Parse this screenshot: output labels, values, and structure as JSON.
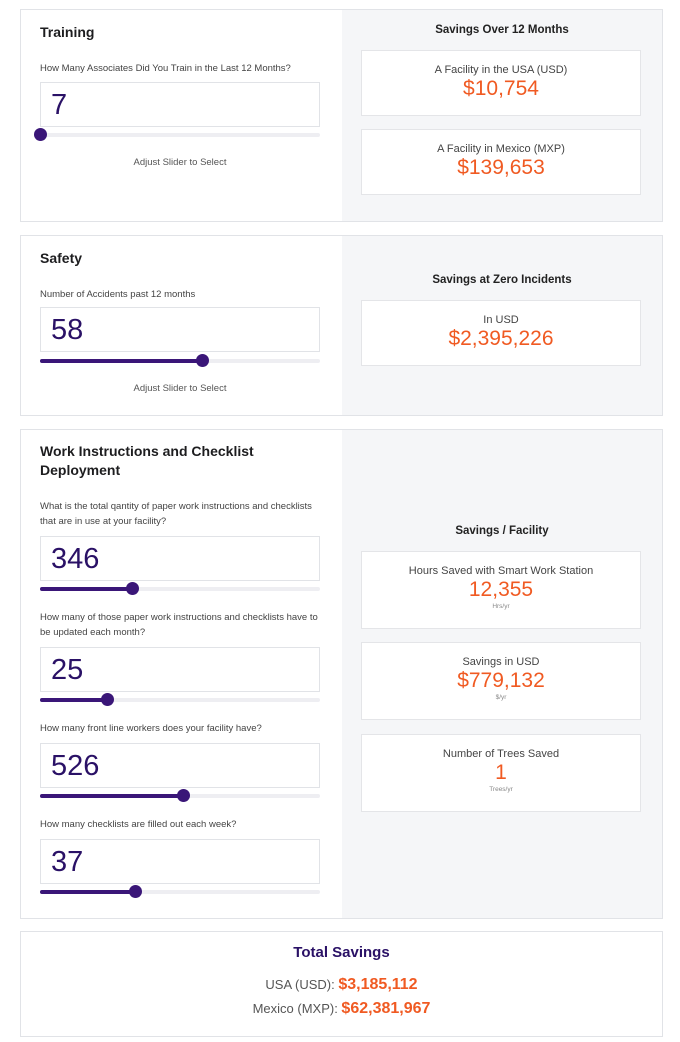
{
  "training": {
    "title": "Training",
    "question": "How Many Associates Did You Train in the Last 12 Months?",
    "value": "7",
    "slider_fraction": 0.0,
    "hint": "Adjust Slider to Select",
    "right_title": "Savings Over 12 Months",
    "stats": [
      {
        "label": "A Facility in the USA (USD)",
        "value": "$10,754"
      },
      {
        "label": "A Facility in Mexico (MXP)",
        "value": "$139,653"
      }
    ]
  },
  "safety": {
    "title": "Safety",
    "question": "Number of Accidents past 12 months",
    "value": "58",
    "slider_fraction": 0.58,
    "hint": "Adjust Slider to Select",
    "right_title": "Savings at Zero Incidents",
    "stats": [
      {
        "label": "In USD",
        "value": "$2,395,226"
      }
    ]
  },
  "work": {
    "title_line1": "Work Instructions and Checklist",
    "title_line2": "Deployment",
    "questions": [
      {
        "text": "What is the total qantity of paper work instructions and checklists that are in use at your facility?",
        "value": "346",
        "slider_fraction": 0.33
      },
      {
        "text": "How many of those paper work instructions and checklists have to be updated each month?",
        "value": "25",
        "slider_fraction": 0.24
      },
      {
        "text": "How many front line workers does your facility have?",
        "value": "526",
        "slider_fraction": 0.51
      },
      {
        "text": "How many checklists are filled out each week?",
        "value": "37",
        "slider_fraction": 0.34
      }
    ],
    "right_title": "Savings / Facility",
    "stats": [
      {
        "label": "Hours Saved with Smart Work Station",
        "value": "12,355",
        "unit": "Hrs/yr"
      },
      {
        "label": "Savings in USD",
        "value": "$779,132",
        "unit": "$/yr"
      },
      {
        "label": "Number of Trees Saved",
        "value": "1",
        "unit": "Trees/yr"
      }
    ]
  },
  "total": {
    "title": "Total Savings",
    "usa_label": "USA (USD): ",
    "usa_value": "$3,185,112",
    "mexico_label": "Mexico (MXP): ",
    "mexico_value": "$62,381,967"
  },
  "colors": {
    "accent_purple": "#3a1678",
    "value_orange": "#f05a22"
  }
}
